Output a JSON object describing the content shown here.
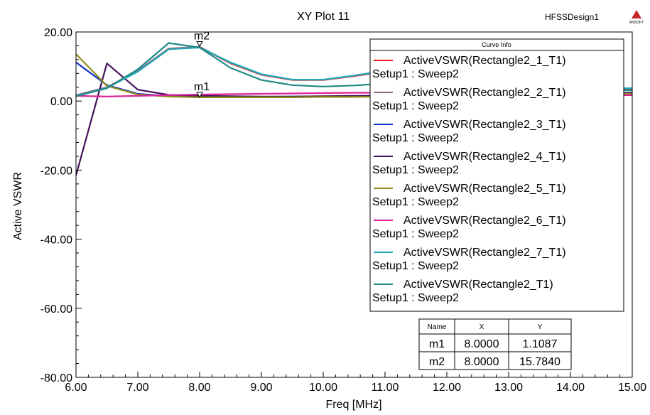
{
  "chart_data": {
    "type": "line",
    "title": "XY Plot 11",
    "design_name": "HFSSDesign1",
    "logo_text": "ANSOFT",
    "xlabel": "Freq [MHz]",
    "ylabel": "Active VSWR",
    "xlim": [
      6.0,
      15.0
    ],
    "ylim": [
      -80.0,
      20.0
    ],
    "x_ticks": [
      "6.00",
      "7.00",
      "8.00",
      "9.00",
      "10.00",
      "11.00",
      "12.00",
      "13.00",
      "14.00",
      "15.00"
    ],
    "y_ticks": [
      "20.00",
      "0.00",
      "-20.00",
      "-40.00",
      "-60.00",
      "-80.00"
    ],
    "x_tick_values": [
      6,
      7,
      8,
      9,
      10,
      11,
      12,
      13,
      14,
      15
    ],
    "y_tick_values": [
      20,
      0,
      -20,
      -40,
      -60,
      -80
    ],
    "grid": false,
    "legend_title": "Curve Info",
    "legend_position": "top-right",
    "series": [
      {
        "name": "ActiveVSWR(Rectangle2_1_T1)",
        "setup": "Setup1 : Sweep2",
        "color": "#ee2222",
        "x": [
          6,
          6.5,
          7,
          7.5,
          8,
          8.5,
          9,
          9.5,
          10,
          10.5,
          11,
          11.5,
          12,
          12.5,
          13,
          13.5,
          14,
          14.5,
          15
        ],
        "y": [
          1.6,
          3.9,
          8.6,
          15.0,
          15.6,
          10.9,
          7.6,
          6.1,
          6.1,
          7.2,
          8.6,
          7.8,
          6.5,
          5.4,
          4.6,
          4.1,
          3.8,
          3.6,
          3.5
        ]
      },
      {
        "name": "ActiveVSWR(Rectangle2_2_T1)",
        "setup": "Setup1 : Sweep2",
        "color": "#996677",
        "x": [
          6,
          6.5,
          7,
          7.5,
          8,
          8.5,
          9,
          9.5,
          10,
          10.5,
          11,
          11.5,
          12,
          12.5,
          13,
          13.5,
          14,
          14.5,
          15
        ],
        "y": [
          1.7,
          4.0,
          8.8,
          15.2,
          15.7,
          11.0,
          7.7,
          6.2,
          6.2,
          7.3,
          8.7,
          7.9,
          6.6,
          5.5,
          4.7,
          4.2,
          3.9,
          3.7,
          3.6
        ]
      },
      {
        "name": "ActiveVSWR(Rectangle2_3_T1)",
        "setup": "Setup1 : Sweep2",
        "color": "#1133cc",
        "x": [
          6,
          6.5,
          7,
          7.5,
          8,
          8.5,
          9,
          9.5,
          10,
          10.5,
          11,
          11.5,
          12,
          12.5,
          13,
          13.5,
          14,
          14.5,
          15
        ],
        "y": [
          11.2,
          4.6,
          2.1,
          1.4,
          1.2,
          1.2,
          1.2,
          1.3,
          1.3,
          1.4,
          1.5,
          1.6,
          1.7,
          1.8,
          1.9,
          2.0,
          2.1,
          2.2,
          2.3
        ]
      },
      {
        "name": "ActiveVSWR(Rectangle2_4_T1)",
        "setup": "Setup1 : Sweep2",
        "color": "#44115a",
        "x": [
          6,
          6.5,
          7,
          7.5,
          8,
          8.5,
          9,
          9.5,
          10,
          10.5,
          11,
          11.5,
          12,
          12.5,
          13,
          13.5,
          14,
          14.5,
          15
        ],
        "y": [
          -21.5,
          10.9,
          3.3,
          1.8,
          1.5,
          1.4,
          1.3,
          1.3,
          1.4,
          1.5,
          1.6,
          1.7,
          1.8,
          1.9,
          2.0,
          2.1,
          2.2,
          2.3,
          2.4
        ]
      },
      {
        "name": "ActiveVSWR(Rectangle2_5_T1)",
        "setup": "Setup1 : Sweep2",
        "color": "#8c8c1a",
        "x": [
          6,
          6.5,
          7,
          7.5,
          8,
          8.5,
          9,
          9.5,
          10,
          10.5,
          11,
          11.5,
          12,
          12.5,
          13,
          13.5,
          14,
          14.5,
          15
        ],
        "y": [
          13.6,
          4.4,
          1.9,
          1.3,
          1.1,
          1.1,
          1.1,
          1.1,
          1.2,
          1.2,
          1.3,
          1.4,
          1.5,
          1.6,
          1.7,
          1.8,
          1.9,
          2.0,
          2.1
        ]
      },
      {
        "name": "ActiveVSWR(Rectangle2_6_T1)",
        "setup": "Setup1 : Sweep2",
        "color": "#dd2299",
        "x": [
          6,
          6.5,
          7,
          7.5,
          8,
          8.5,
          9,
          9.5,
          10,
          10.5,
          11,
          11.5,
          12,
          12.5,
          13,
          13.5,
          14,
          14.5,
          15
        ],
        "y": [
          1.5,
          1.3,
          1.5,
          1.7,
          1.9,
          2.0,
          2.1,
          2.2,
          2.3,
          2.4,
          2.4,
          2.3,
          2.2,
          2.1,
          2.0,
          1.9,
          1.8,
          1.7,
          1.7
        ]
      },
      {
        "name": "ActiveVSWR(Rectangle2_7_T1)",
        "setup": "Setup1 : Sweep2",
        "color": "#22aabb",
        "x": [
          6,
          6.5,
          7,
          7.5,
          8,
          8.5,
          9,
          9.5,
          10,
          10.5,
          11,
          11.5,
          12,
          12.5,
          13,
          13.5,
          14,
          14.5,
          15
        ],
        "y": [
          1.5,
          3.8,
          8.5,
          15.0,
          15.5,
          11.2,
          7.8,
          6.2,
          6.2,
          7.4,
          8.8,
          8.0,
          6.7,
          5.6,
          4.8,
          4.3,
          4.0,
          3.8,
          3.7
        ]
      },
      {
        "name": "ActiveVSWR(Rectangle2_T1)",
        "setup": "Setup1 : Sweep2",
        "color": "#1f8a86",
        "x": [
          6,
          6.5,
          7,
          7.5,
          8,
          8.5,
          9,
          9.5,
          10,
          10.5,
          11,
          11.5,
          12,
          12.5,
          13,
          13.5,
          14,
          14.5,
          15
        ],
        "y": [
          1.4,
          3.7,
          9.2,
          16.8,
          15.5,
          9.6,
          6.1,
          4.6,
          4.2,
          4.5,
          5.1,
          4.8,
          4.3,
          3.9,
          3.6,
          3.4,
          3.3,
          3.2,
          3.1
        ]
      }
    ],
    "markers": [
      {
        "name": "m1",
        "x": 8.0,
        "y": 1.1087,
        "x_text": "8.0000",
        "y_text": "1.1087"
      },
      {
        "name": "m2",
        "x": 8.0,
        "y": 15.784,
        "x_text": "8.0000",
        "y_text": "15.7840"
      }
    ],
    "marker_table": {
      "headers": [
        "Name",
        "X",
        "Y"
      ]
    }
  }
}
